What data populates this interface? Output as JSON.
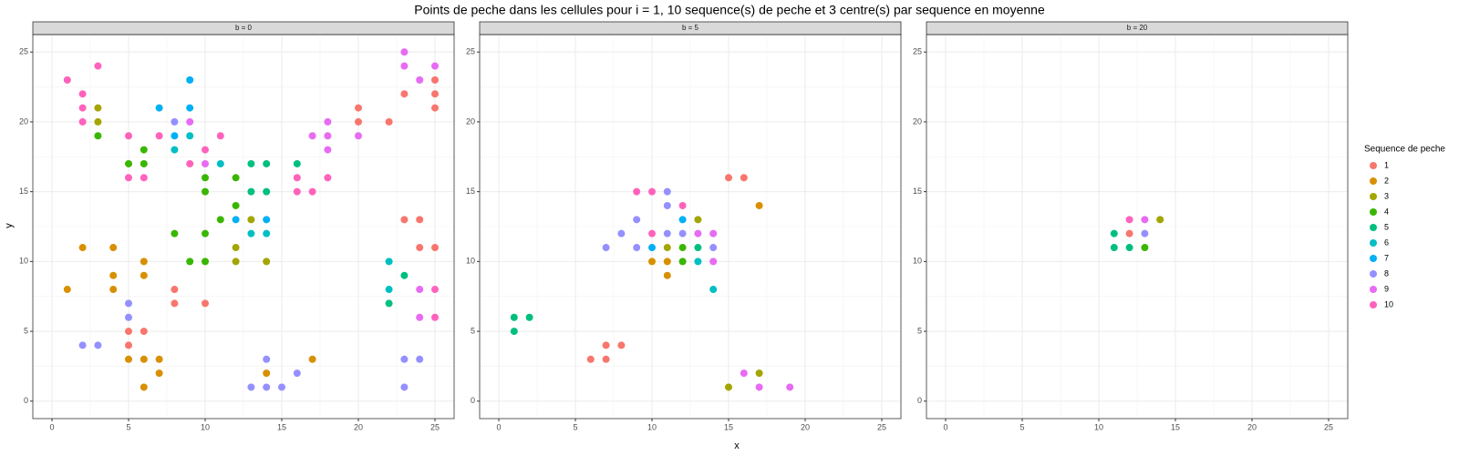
{
  "chart_data": {
    "type": "scatter",
    "title": "Points de peche dans les cellules pour i = 1, 10 sequence(s) de peche et 3 centre(s) par sequence en moyenne",
    "x_label": "x",
    "y_label": "y",
    "legend_title": "Sequence de peche",
    "xlim": [
      -1.25,
      26.25
    ],
    "ylim": [
      -1.25,
      26.25
    ],
    "xticks": [
      0,
      5,
      10,
      15,
      20,
      25
    ],
    "yticks": [
      0,
      5,
      10,
      15,
      20,
      25
    ],
    "grid": true,
    "series": [
      {
        "name": "1",
        "color": "#F8766D"
      },
      {
        "name": "2",
        "color": "#D89000"
      },
      {
        "name": "3",
        "color": "#A3A500"
      },
      {
        "name": "4",
        "color": "#39B600"
      },
      {
        "name": "5",
        "color": "#00BF7D"
      },
      {
        "name": "6",
        "color": "#00BFC4"
      },
      {
        "name": "7",
        "color": "#00B0F6"
      },
      {
        "name": "8",
        "color": "#9590FF"
      },
      {
        "name": "9",
        "color": "#E76BF3"
      },
      {
        "name": "10",
        "color": "#FF62BC"
      }
    ],
    "facets": [
      {
        "label": "b = 0",
        "series": [
          {
            "x": [
              5,
              5,
              6,
              8,
              8,
              10,
              20,
              20,
              22,
              23,
              25,
              25,
              25,
              23,
              24,
              24,
              25
            ],
            "y": [
              4,
              5,
              5,
              8,
              7,
              7,
              21,
              20,
              20,
              22,
              23,
              22,
              21,
              13,
              13,
              11,
              11
            ]
          },
          {
            "x": [
              1,
              2,
              4,
              4,
              4,
              6,
              6,
              5,
              6,
              7,
              7,
              6,
              14,
              17
            ],
            "y": [
              8,
              11,
              11,
              9,
              8,
              10,
              9,
              3,
              3,
              3,
              2,
              1,
              2,
              3
            ]
          },
          {
            "x": [
              3,
              3,
              12,
              12,
              13,
              14
            ],
            "y": [
              21,
              20,
              11,
              10,
              13,
              10
            ]
          },
          {
            "x": [
              3,
              5,
              6,
              6,
              10,
              10,
              12,
              12,
              11,
              8,
              10,
              9,
              10
            ],
            "y": [
              19,
              17,
              17,
              18,
              16,
              15,
              16,
              14,
              13,
              12,
              12,
              10,
              10
            ]
          },
          {
            "x": [
              13,
              14,
              13,
              14,
              16,
              23,
              22
            ],
            "y": [
              17,
              17,
              15,
              15,
              17,
              9,
              7
            ]
          },
          {
            "x": [
              8,
              9,
              11,
              13,
              14,
              22,
              22
            ],
            "y": [
              18,
              19,
              17,
              12,
              12,
              10,
              8
            ]
          },
          {
            "x": [
              7,
              9,
              9,
              8,
              12,
              14
            ],
            "y": [
              21,
              23,
              21,
              19,
              13,
              13
            ]
          },
          {
            "x": [
              8,
              5,
              5,
              2,
              3,
              13,
              14,
              15,
              14,
              16,
              23,
              24,
              23
            ],
            "y": [
              20,
              7,
              6,
              4,
              4,
              1,
              1,
              1,
              3,
              2,
              3,
              3,
              1
            ]
          },
          {
            "x": [
              9,
              10,
              17,
              18,
              18,
              18,
              20,
              23,
              23,
              24,
              25,
              24,
              24
            ],
            "y": [
              20,
              17,
              19,
              20,
              19,
              18,
              19,
              25,
              24,
              23,
              24,
              8,
              6
            ]
          },
          {
            "x": [
              1,
              2,
              2,
              2,
              3,
              5,
              5,
              6,
              7,
              9,
              10,
              11,
              16,
              16,
              17,
              18,
              25,
              25
            ],
            "y": [
              23,
              22,
              21,
              20,
              24,
              19,
              16,
              16,
              19,
              17,
              18,
              19,
              16,
              15,
              15,
              16,
              8,
              6
            ]
          }
        ]
      },
      {
        "label": "b = 5",
        "series": [
          {
            "x": [
              6,
              7,
              7,
              8,
              15,
              16
            ],
            "y": [
              3,
              3,
              4,
              4,
              16,
              16
            ]
          },
          {
            "x": [
              10,
              11,
              11,
              17
            ],
            "y": [
              10,
              10,
              9,
              14
            ]
          },
          {
            "x": [
              11,
              13,
              15,
              17
            ],
            "y": [
              11,
              13,
              1,
              2
            ]
          },
          {
            "x": [
              12,
              12
            ],
            "y": [
              11,
              10
            ]
          },
          {
            "x": [
              1,
              2,
              1,
              13
            ],
            "y": [
              6,
              6,
              5,
              11
            ]
          },
          {
            "x": [
              13,
              14
            ],
            "y": [
              10,
              8
            ]
          },
          {
            "x": [
              10,
              12
            ],
            "y": [
              11,
              13
            ]
          },
          {
            "x": [
              7,
              8,
              9,
              9,
              11,
              11,
              11,
              12,
              14
            ],
            "y": [
              11,
              12,
              13,
              11,
              15,
              14,
              12,
              12,
              11
            ]
          },
          {
            "x": [
              13,
              14,
              14,
              16,
              17,
              19
            ],
            "y": [
              12,
              12,
              10,
              2,
              1,
              1
            ]
          },
          {
            "x": [
              9,
              10,
              10,
              12
            ],
            "y": [
              15,
              15,
              12,
              14
            ]
          }
        ]
      },
      {
        "label": "b = 20",
        "series": [
          {
            "x": [
              12
            ],
            "y": [
              12
            ]
          },
          {
            "x": [],
            "y": []
          },
          {
            "x": [
              14
            ],
            "y": [
              13
            ]
          },
          {
            "x": [
              13
            ],
            "y": [
              11
            ]
          },
          {
            "x": [
              11,
              11,
              12
            ],
            "y": [
              12,
              11,
              11
            ]
          },
          {
            "x": [],
            "y": []
          },
          {
            "x": [],
            "y": []
          },
          {
            "x": [
              13
            ],
            "y": [
              12
            ]
          },
          {
            "x": [
              13
            ],
            "y": [
              13
            ]
          },
          {
            "x": [
              12
            ],
            "y": [
              13
            ]
          }
        ]
      }
    ]
  }
}
